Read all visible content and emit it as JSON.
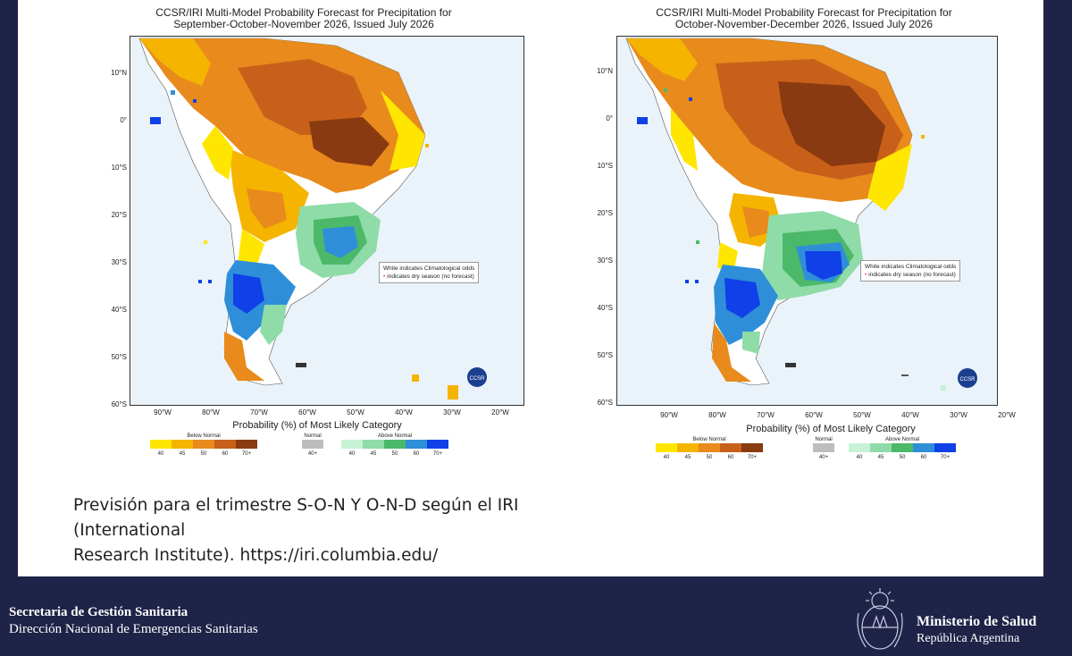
{
  "maps": [
    {
      "title_line1": "CCSR/IRI Multi-Model Probability Forecast for Precipitation for",
      "title_line2": "September-October-November 2026, Issued July 2026"
    },
    {
      "title_line1": "CCSR/IRI Multi-Model Probability Forecast for Precipitation for",
      "title_line2": "October-November-December 2026, Issued July 2026"
    }
  ],
  "lat_labels": [
    "10°N",
    "0°",
    "10°S",
    "20°S",
    "30°S",
    "40°S",
    "50°S",
    "60°S"
  ],
  "lon_labels": [
    "90°W",
    "80°W",
    "70°W",
    "60°W",
    "50°W",
    "40°W",
    "30°W",
    "20°W"
  ],
  "note_line1": "White indicates Climatological odds",
  "note_line2": "indicates dry season (no forecast)",
  "legend": {
    "title": "Probability (%) of Most Likely Category",
    "below_normal": "Below Normal",
    "normal": "Normal",
    "above_normal": "Above Normal",
    "below_ticks": [
      "40",
      "45",
      "50",
      "60",
      "70+"
    ],
    "normal_ticks": [
      "40+"
    ],
    "above_ticks": [
      "40",
      "45",
      "50",
      "60",
      "70+"
    ],
    "below_colors": [
      "#ffe600",
      "#f5b400",
      "#e88a1c",
      "#c8601a",
      "#8a3a10"
    ],
    "normal_colors": [
      "#bdbdbd"
    ],
    "above_colors": [
      "#c6f2d6",
      "#8fdca8",
      "#4cb86a",
      "#2e8fd8",
      "#1040e8"
    ]
  },
  "logo_text": "CCSR",
  "caption": {
    "line1": "Previsión para el trimestre S-O-N Y O-N-D según el IRI",
    "line2": "(International",
    "line3": "Research Institute). https://iri.columbia.edu/"
  },
  "footer": {
    "left_line1": "Secretaria de Gestión Sanitaria",
    "left_line2": "Dirección Nacional de Emergencias Sanitarias",
    "right_line1": "Ministerio de Salud",
    "right_line2": "República Argentina"
  }
}
